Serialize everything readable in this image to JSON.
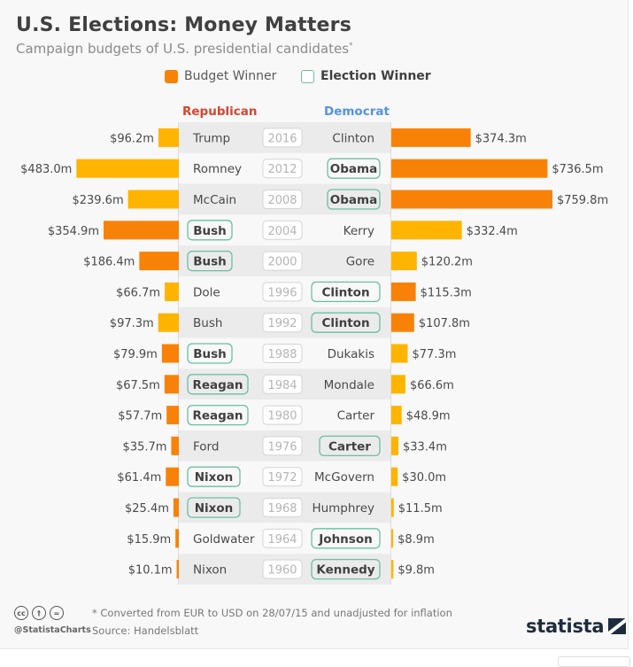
{
  "header": {
    "title": "U.S. Elections: Money Matters",
    "subtitle": "Campaign budgets of U.S. presidential candidates",
    "subtitle_mark": "*"
  },
  "legend": {
    "budget_winner": "Budget Winner",
    "election_winner": "Election Winner"
  },
  "colors": {
    "budget_winner": "#f88208",
    "budget_loser": "#ffb400",
    "election_winner_outline": "#6bbfa3",
    "republican": "#d9432e",
    "democrat": "#5592de",
    "band_dark": "#ebebeb",
    "band_light": "#f8f8f8"
  },
  "chart_data": {
    "type": "bar",
    "title": "U.S. Elections: Money Matters",
    "subtitle": "Campaign budgets of U.S. presidential candidates*",
    "orientation": "horizontal-diverging",
    "unit": "million USD",
    "left_label": "Republican",
    "right_label": "Democrat",
    "legend": [
      "Budget Winner",
      "Election Winner"
    ],
    "legend_position": "top",
    "xlim": [
      0,
      800
    ],
    "rows": [
      {
        "year": "2016",
        "rep": {
          "name": "Trump",
          "value": 96.2,
          "label": "$96.2m",
          "election_winner": false
        },
        "dem": {
          "name": "Clinton",
          "value": 374.3,
          "label": "$374.3m",
          "election_winner": false
        }
      },
      {
        "year": "2012",
        "rep": {
          "name": "Romney",
          "value": 483.0,
          "label": "$483.0m",
          "election_winner": false
        },
        "dem": {
          "name": "Obama",
          "value": 736.5,
          "label": "$736.5m",
          "election_winner": true
        }
      },
      {
        "year": "2008",
        "rep": {
          "name": "McCain",
          "value": 239.6,
          "label": "$239.6m",
          "election_winner": false
        },
        "dem": {
          "name": "Obama",
          "value": 759.8,
          "label": "$759.8m",
          "election_winner": true
        }
      },
      {
        "year": "2004",
        "rep": {
          "name": "Bush",
          "value": 354.9,
          "label": "$354.9m",
          "election_winner": true
        },
        "dem": {
          "name": "Kerry",
          "value": 332.4,
          "label": "$332.4m",
          "election_winner": false
        }
      },
      {
        "year": "2000",
        "rep": {
          "name": "Bush",
          "value": 186.4,
          "label": "$186.4m",
          "election_winner": true
        },
        "dem": {
          "name": "Gore",
          "value": 120.2,
          "label": "$120.2m",
          "election_winner": false
        }
      },
      {
        "year": "1996",
        "rep": {
          "name": "Dole",
          "value": 66.7,
          "label": "$66.7m",
          "election_winner": false
        },
        "dem": {
          "name": "Clinton",
          "value": 115.3,
          "label": "$115.3m",
          "election_winner": true
        }
      },
      {
        "year": "1992",
        "rep": {
          "name": "Bush",
          "value": 97.3,
          "label": "$97.3m",
          "election_winner": false
        },
        "dem": {
          "name": "Clinton",
          "value": 107.8,
          "label": "$107.8m",
          "election_winner": true
        }
      },
      {
        "year": "1988",
        "rep": {
          "name": "Bush",
          "value": 79.9,
          "label": "$79.9m",
          "election_winner": true
        },
        "dem": {
          "name": "Dukakis",
          "value": 77.3,
          "label": "$77.3m",
          "election_winner": false
        }
      },
      {
        "year": "1984",
        "rep": {
          "name": "Reagan",
          "value": 67.5,
          "label": "$67.5m",
          "election_winner": true
        },
        "dem": {
          "name": "Mondale",
          "value": 66.6,
          "label": "$66.6m",
          "election_winner": false
        }
      },
      {
        "year": "1980",
        "rep": {
          "name": "Reagan",
          "value": 57.7,
          "label": "$57.7m",
          "election_winner": true
        },
        "dem": {
          "name": "Carter",
          "value": 48.9,
          "label": "$48.9m",
          "election_winner": false
        }
      },
      {
        "year": "1976",
        "rep": {
          "name": "Ford",
          "value": 35.7,
          "label": "$35.7m",
          "election_winner": false
        },
        "dem": {
          "name": "Carter",
          "value": 33.4,
          "label": "$33.4m",
          "election_winner": true
        }
      },
      {
        "year": "1972",
        "rep": {
          "name": "Nixon",
          "value": 61.4,
          "label": "$61.4m",
          "election_winner": true
        },
        "dem": {
          "name": "McGovern",
          "value": 30.0,
          "label": "$30.0m",
          "election_winner": false
        }
      },
      {
        "year": "1968",
        "rep": {
          "name": "Nixon",
          "value": 25.4,
          "label": "$25.4m",
          "election_winner": true
        },
        "dem": {
          "name": "Humphrey",
          "value": 11.5,
          "label": "$11.5m",
          "election_winner": false
        }
      },
      {
        "year": "1964",
        "rep": {
          "name": "Goldwater",
          "value": 15.9,
          "label": "$15.9m",
          "election_winner": false
        },
        "dem": {
          "name": "Johnson",
          "value": 8.9,
          "label": "$8.9m",
          "election_winner": true
        }
      },
      {
        "year": "1960",
        "rep": {
          "name": "Nixon",
          "value": 10.1,
          "label": "$10.1m",
          "election_winner": false
        },
        "dem": {
          "name": "Kennedy",
          "value": 9.8,
          "label": "$9.8m",
          "election_winner": true
        }
      }
    ]
  },
  "footer": {
    "note": "* Converted from EUR to USD on 28/07/15 and unadjusted for inflation",
    "source": "Source: Handelsblatt",
    "handle": "@StatistaCharts",
    "license_icons": [
      "cc-icon",
      "by-icon",
      "nd-icon"
    ],
    "license_glyphs": [
      "cc",
      "†",
      "="
    ],
    "logo": "statista"
  }
}
